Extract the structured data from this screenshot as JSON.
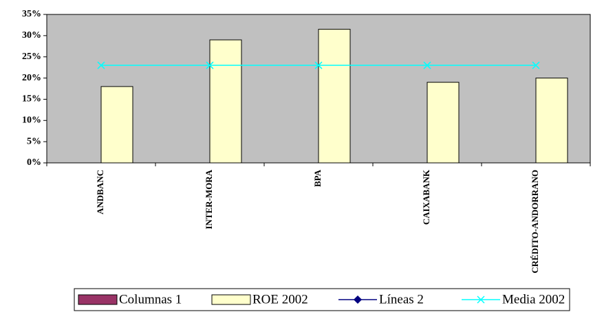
{
  "chart_data": {
    "type": "bar",
    "categories": [
      "ANDBANC",
      "INTER-MORA",
      "BPA",
      "CAIXABANK",
      "CRÉDITO-ANDORRANO"
    ],
    "series": [
      {
        "name": "Columnas 1",
        "type": "bar",
        "color": "#993366",
        "values": [
          null,
          null,
          null,
          null,
          null
        ]
      },
      {
        "name": "ROE 2002",
        "type": "bar",
        "color": "#ffffcc",
        "values": [
          18,
          29,
          31.5,
          19,
          20
        ]
      },
      {
        "name": "Líneas 2",
        "type": "line",
        "marker": "diamond",
        "color": "#000080",
        "values": [
          null,
          null,
          null,
          null,
          null
        ]
      },
      {
        "name": "Media 2002",
        "type": "line",
        "marker": "x",
        "color": "#00ffff",
        "values": [
          23,
          23,
          23,
          23,
          23
        ]
      }
    ],
    "ylim": [
      0,
      35
    ],
    "yticks": [
      {
        "value": 0,
        "label": "0%"
      },
      {
        "value": 5,
        "label": "5%"
      },
      {
        "value": 10,
        "label": "10%"
      },
      {
        "value": 15,
        "label": "15%"
      },
      {
        "value": 20,
        "label": "20%"
      },
      {
        "value": 25,
        "label": "25%"
      },
      {
        "value": 30,
        "label": "30%"
      },
      {
        "value": 35,
        "label": "35%"
      }
    ],
    "plot_background": "#c0c0c0",
    "legend": "bottom"
  }
}
